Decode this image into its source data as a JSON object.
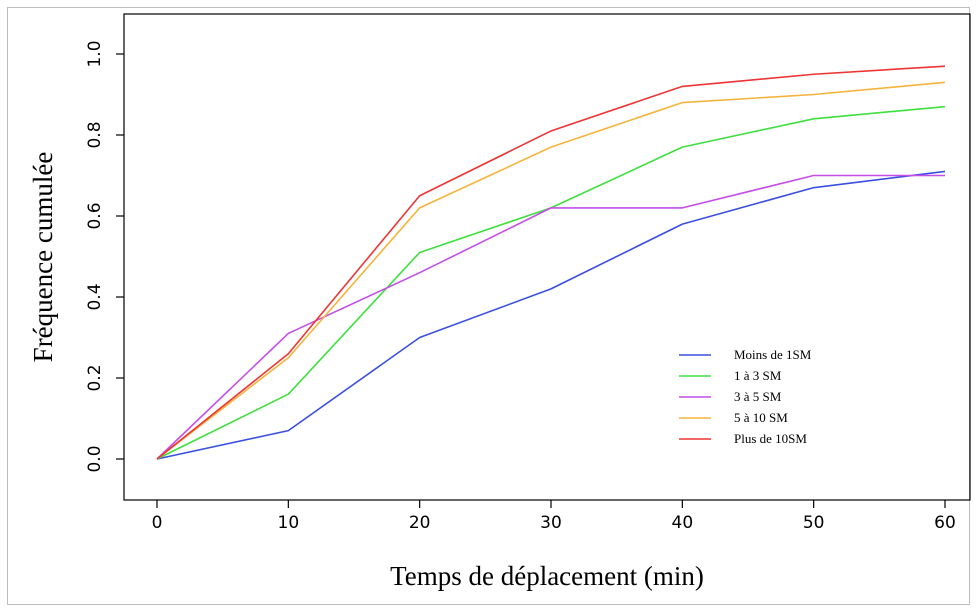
{
  "chart_data": {
    "type": "line",
    "title": "",
    "xlabel": "Temps de déplacement (min)",
    "ylabel": "Fréquence cumulée",
    "x": [
      0,
      10,
      20,
      30,
      40,
      50,
      60
    ],
    "xticks": [
      "0",
      "10",
      "20",
      "30",
      "40",
      "50",
      "60"
    ],
    "yticks": [
      "0.0",
      "0.2",
      "0.4",
      "0.6",
      "0.8",
      "1.0"
    ],
    "xlim": [
      0,
      60
    ],
    "ylim": [
      0,
      1
    ],
    "grid": false,
    "legend_position": "bottom-right",
    "series": [
      {
        "name": "Moins de 1SM",
        "color": "#3a4fe0",
        "values": [
          0.0,
          0.07,
          0.3,
          0.42,
          0.58,
          0.67,
          0.71
        ]
      },
      {
        "name": "1 à 3 SM",
        "color": "#3ee03e",
        "values": [
          0.0,
          0.16,
          0.51,
          0.62,
          0.77,
          0.84,
          0.87
        ]
      },
      {
        "name": "3 à 5 SM",
        "color": "#c34fe8",
        "values": [
          0.0,
          0.31,
          0.46,
          0.62,
          0.62,
          0.7,
          0.7
        ]
      },
      {
        "name": "5 à 10 SM",
        "color": "#f5b33c",
        "values": [
          0.0,
          0.25,
          0.62,
          0.77,
          0.88,
          0.9,
          0.93
        ]
      },
      {
        "name": "Plus de 10SM",
        "color": "#ee3434",
        "values": [
          0.0,
          0.26,
          0.65,
          0.81,
          0.92,
          0.95,
          0.97
        ]
      }
    ]
  }
}
